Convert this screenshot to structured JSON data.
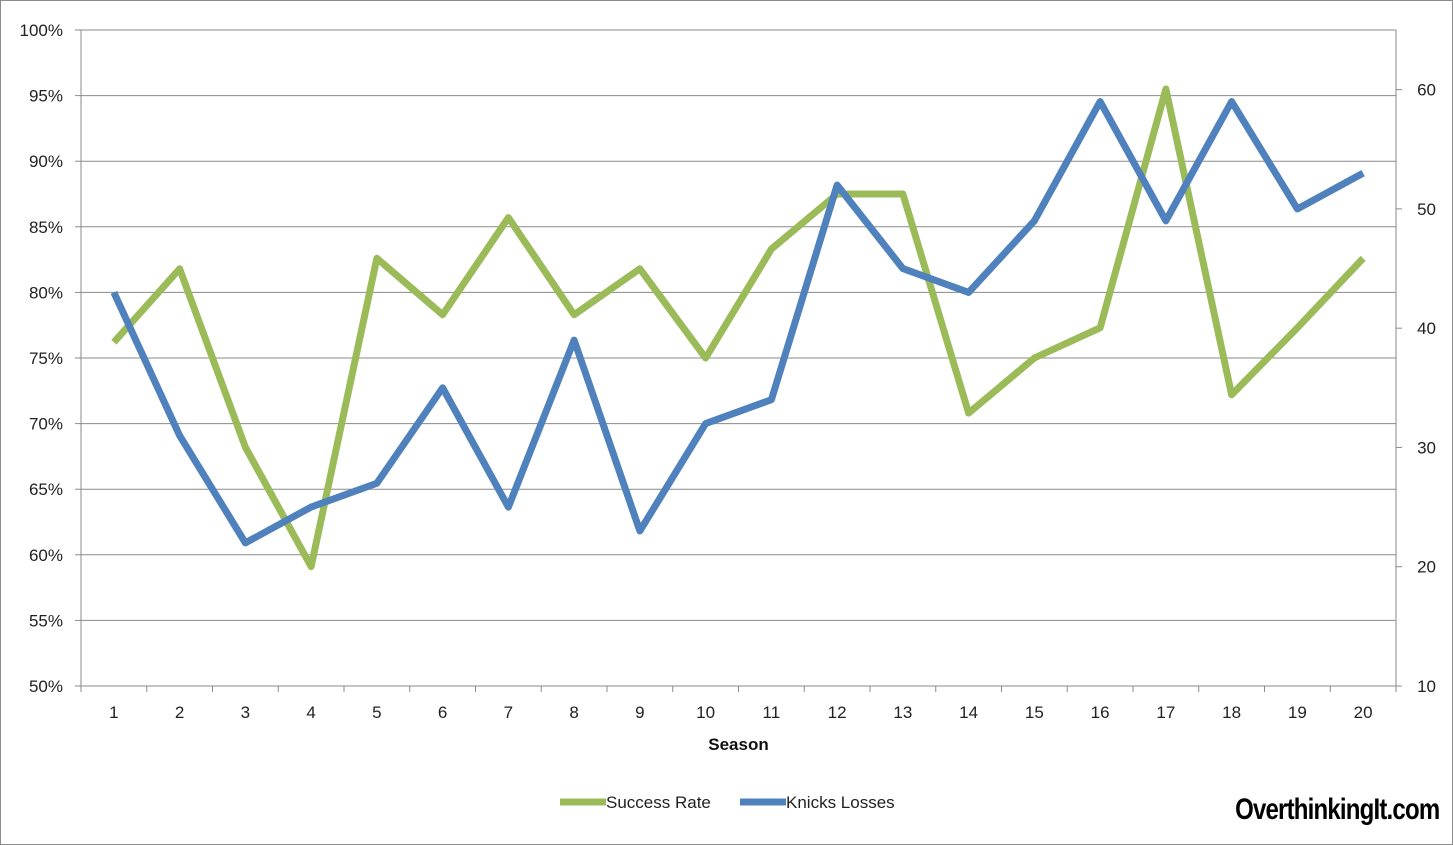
{
  "chart_data": {
    "type": "line",
    "xlabel": "Season",
    "categories": [
      "1",
      "2",
      "3",
      "4",
      "5",
      "6",
      "7",
      "8",
      "9",
      "10",
      "11",
      "12",
      "13",
      "14",
      "15",
      "16",
      "17",
      "18",
      "19",
      "20"
    ],
    "left_axis": {
      "min": 50,
      "max": 100,
      "step": 5,
      "tick_labels": [
        "50%",
        "55%",
        "60%",
        "65%",
        "70%",
        "75%",
        "80%",
        "85%",
        "90%",
        "95%",
        "100%"
      ]
    },
    "right_axis": {
      "min": 10,
      "max": 65,
      "step": 10,
      "tick_labels": [
        "10",
        "20",
        "30",
        "40",
        "50",
        "60"
      ]
    },
    "series": [
      {
        "name": "Success Rate",
        "axis": "left",
        "color": "#9bbb59",
        "values": [
          76.2,
          81.8,
          68.2,
          59.1,
          82.6,
          78.3,
          85.7,
          78.3,
          81.8,
          75.0,
          83.3,
          87.5,
          87.5,
          70.8,
          75.0,
          77.3,
          95.5,
          72.2,
          77.3,
          82.6
        ]
      },
      {
        "name": "Knicks Losses",
        "axis": "right",
        "color": "#4f81bd",
        "values": [
          43,
          31,
          22,
          25,
          27,
          35,
          25,
          39,
          23,
          32,
          34,
          52,
          45,
          43,
          49,
          59,
          49,
          59,
          50,
          53
        ]
      }
    ],
    "grid": true,
    "legend_position": "bottom-center"
  },
  "watermark": "OverthinkingIt.com"
}
